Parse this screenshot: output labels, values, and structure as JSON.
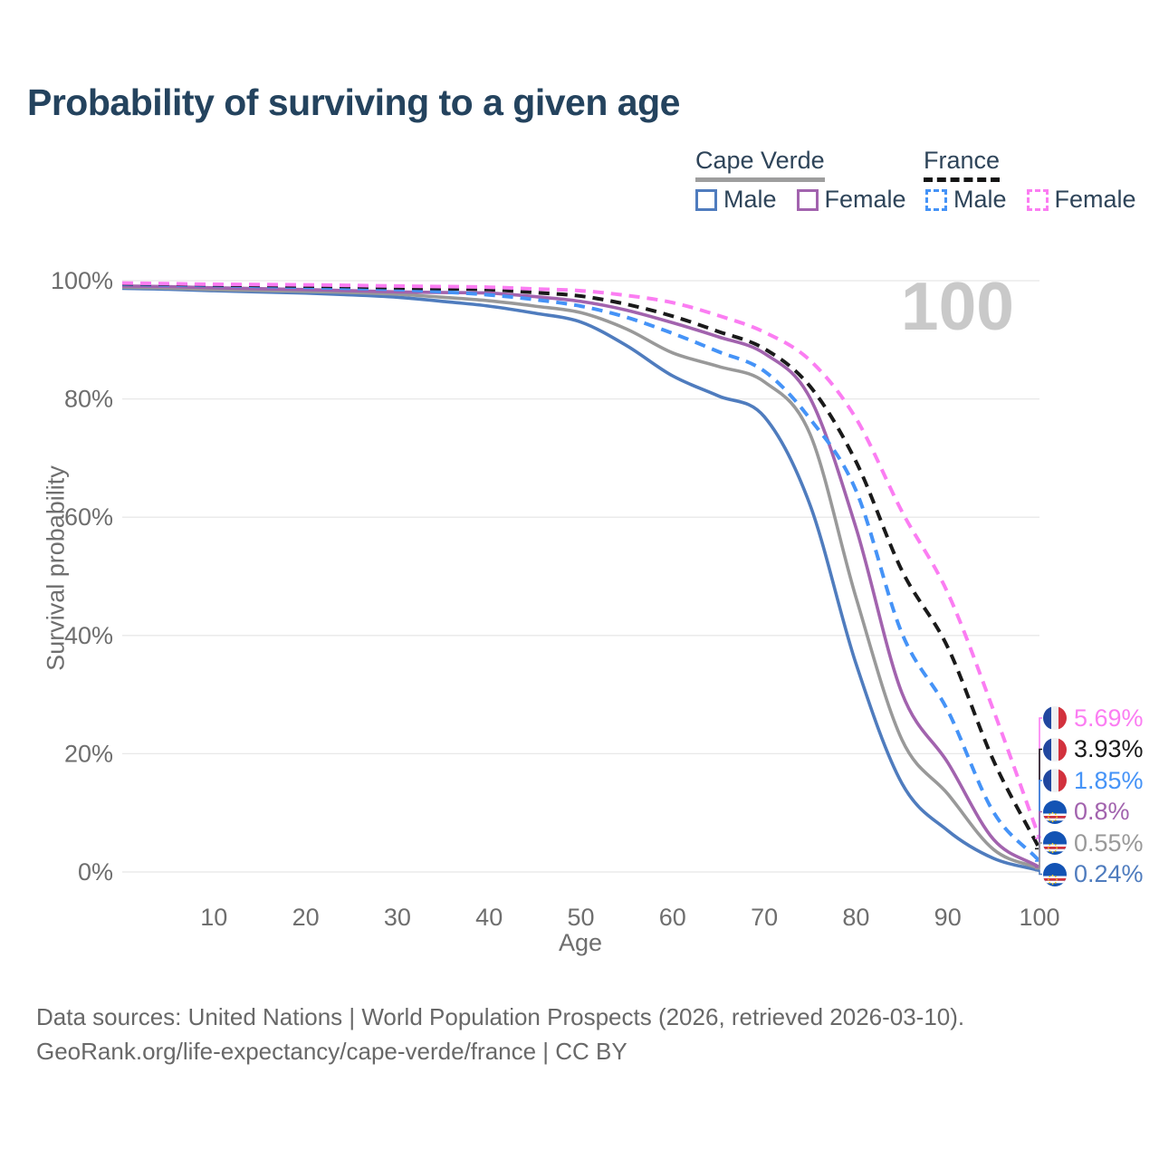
{
  "title": "Probability of surviving to a given age",
  "watermark": "100",
  "legend": {
    "groups": [
      {
        "label": "Cape Verde",
        "line_style": "solid",
        "underline_color": "#9e9e9e",
        "items": [
          {
            "label": "Male",
            "color": "#4f7cbe",
            "dashed": false
          },
          {
            "label": "Female",
            "color": "#a263ae",
            "dashed": false
          }
        ]
      },
      {
        "label": "France",
        "line_style": "dashed",
        "underline_color": "#141414",
        "items": [
          {
            "label": "Male",
            "color": "#4593f7",
            "dashed": true
          },
          {
            "label": "Female",
            "color": "#fb7df2",
            "dashed": true
          }
        ]
      }
    ]
  },
  "chart_data": {
    "type": "line",
    "title": "Probability of surviving to a given age",
    "xlabel": "Age",
    "ylabel": "Survival probability",
    "xlim": [
      0,
      100
    ],
    "ylim": [
      0,
      100
    ],
    "grid": true,
    "legend_position": "top-right",
    "x_ticks": [
      10,
      20,
      30,
      40,
      50,
      60,
      70,
      80,
      90,
      100
    ],
    "y_ticks": [
      0,
      20,
      40,
      60,
      80,
      100
    ],
    "y_tick_suffix": "%",
    "hover_age_indicator": "100",
    "ages": [
      0,
      5,
      10,
      15,
      20,
      25,
      30,
      35,
      40,
      45,
      50,
      55,
      60,
      65,
      70,
      75,
      80,
      85,
      90,
      95,
      100
    ],
    "series": [
      {
        "id": "cape-verde-male",
        "country": "Cape Verde",
        "sex": "male",
        "name": "Cape Verde Male",
        "color": "#4f7cbe",
        "end_label_color": "#4f7cbe",
        "dashed": false,
        "end_label": "0.24%",
        "values": [
          98.7,
          98.55,
          98.3,
          98.1,
          97.9,
          97.6,
          97.2,
          96.5,
          95.7,
          94.5,
          93.0,
          89.0,
          83.9,
          80.5,
          77.0,
          62.0,
          35.2,
          15.0,
          7.0,
          2.3,
          0.24
        ]
      },
      {
        "id": "cape-verde-both",
        "country": "Cape Verde",
        "sex": "both",
        "name": "Cape Verde",
        "color": "#999999",
        "end_label_color": "#999999",
        "dashed": false,
        "end_label": "0.55%",
        "values": [
          98.9,
          98.75,
          98.5,
          98.35,
          98.2,
          98.0,
          97.7,
          97.2,
          96.6,
          95.7,
          94.6,
          91.8,
          87.8,
          85.5,
          82.9,
          74.0,
          46.4,
          22.4,
          13.2,
          3.8,
          0.55
        ]
      },
      {
        "id": "cape-verde-female",
        "country": "Cape Verde",
        "sex": "female",
        "name": "Cape Verde Female",
        "color": "#a263ae",
        "end_label_color": "#a263ae",
        "dashed": false,
        "end_label": "0.8%",
        "values": [
          99.1,
          99.0,
          98.8,
          98.65,
          98.5,
          98.3,
          98.1,
          98.0,
          97.9,
          97.3,
          96.5,
          95.0,
          92.9,
          90.5,
          87.7,
          80.1,
          58.2,
          30.3,
          18.5,
          5.5,
          0.8
        ]
      },
      {
        "id": "france-male",
        "country": "France",
        "sex": "male",
        "name": "France Male",
        "color": "#4593f7",
        "end_label_color": "#4593f7",
        "dashed": true,
        "end_label": "1.85%",
        "values": [
          99.4,
          99.3,
          99.2,
          99.05,
          98.9,
          98.7,
          98.5,
          98.1,
          97.6,
          96.8,
          95.7,
          93.8,
          91.1,
          88.0,
          84.7,
          76.6,
          64.5,
          40.4,
          27.3,
          10.1,
          1.85
        ]
      },
      {
        "id": "france-both",
        "country": "France",
        "sex": "both",
        "name": "France",
        "color": "#1a1a1a",
        "end_label_color": "#1a1a1a",
        "dashed": true,
        "end_label": "3.93%",
        "values": [
          99.5,
          99.4,
          99.3,
          99.2,
          99.1,
          99.0,
          98.8,
          98.65,
          98.5,
          98.0,
          97.4,
          96.0,
          94.0,
          91.4,
          88.5,
          82.1,
          69.4,
          51.0,
          38.0,
          18.8,
          3.93
        ]
      },
      {
        "id": "france-female",
        "country": "France",
        "sex": "female",
        "name": "France Female",
        "color": "#fb7df2",
        "end_label_color": "#fb7df2",
        "dashed": true,
        "end_label": "5.69%",
        "values": [
          99.6,
          99.5,
          99.4,
          99.35,
          99.3,
          99.2,
          99.1,
          99.0,
          98.9,
          98.6,
          98.3,
          97.5,
          96.3,
          94.1,
          91.3,
          86.5,
          76.7,
          61.0,
          47.2,
          27.3,
          5.69
        ]
      }
    ]
  },
  "footer": {
    "line1": "Data sources: United Nations | World Population Prospects (2026, retrieved 2026-03-10).",
    "line2": "GeoRank.org/life-expectancy/cape-verde/france | CC BY"
  },
  "colors": {
    "title": "#24435e",
    "axis_text": "#6e6e6e",
    "gridline": "#e8e8e8",
    "watermark": "#c9c9c9",
    "footer_text": "#686868"
  }
}
